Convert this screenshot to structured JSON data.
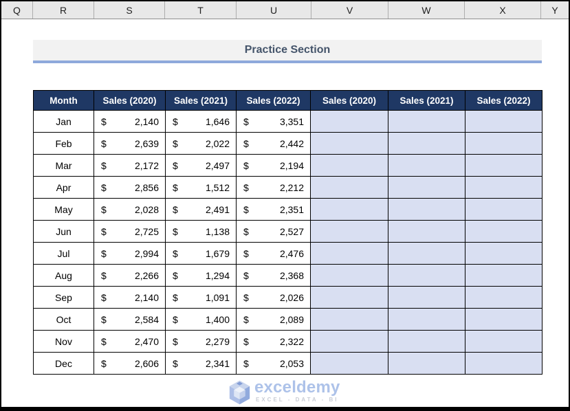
{
  "spreadsheet": {
    "column_letters": [
      "Q",
      "R",
      "S",
      "T",
      "U",
      "V",
      "W",
      "X",
      "Y"
    ]
  },
  "title": {
    "text": "Practice Section"
  },
  "table": {
    "headers": [
      "Month",
      "Sales (2020)",
      "Sales (2021)",
      "Sales (2022)",
      "Sales (2020)",
      "Sales (2021)",
      "Sales (2022)"
    ],
    "currency_symbol": "$",
    "empty_cells_per_row": 3,
    "rows": [
      {
        "month": "Jan",
        "values": [
          "2,140",
          "1,646",
          "3,351"
        ]
      },
      {
        "month": "Feb",
        "values": [
          "2,639",
          "2,022",
          "2,442"
        ]
      },
      {
        "month": "Mar",
        "values": [
          "2,172",
          "2,497",
          "2,194"
        ]
      },
      {
        "month": "Apr",
        "values": [
          "2,856",
          "1,512",
          "2,212"
        ]
      },
      {
        "month": "May",
        "values": [
          "2,028",
          "2,491",
          "2,351"
        ]
      },
      {
        "month": "Jun",
        "values": [
          "2,725",
          "1,138",
          "2,527"
        ]
      },
      {
        "month": "Jul",
        "values": [
          "2,994",
          "1,679",
          "2,476"
        ]
      },
      {
        "month": "Aug",
        "values": [
          "2,266",
          "1,294",
          "2,368"
        ]
      },
      {
        "month": "Sep",
        "values": [
          "2,140",
          "1,091",
          "2,026"
        ]
      },
      {
        "month": "Oct",
        "values": [
          "2,584",
          "1,400",
          "2,089"
        ]
      },
      {
        "month": "Nov",
        "values": [
          "2,470",
          "2,279",
          "2,322"
        ]
      },
      {
        "month": "Dec",
        "values": [
          "2,606",
          "2,341",
          "2,053"
        ]
      }
    ]
  },
  "watermark": {
    "brand": "exceldemy",
    "tagline": "EXCEL - DATA - BI"
  },
  "colors": {
    "header_bg": "#1F3864",
    "header_text": "#FFFFFF",
    "empty_cell_bg": "#D9DFF2",
    "title_text": "#44546A",
    "title_bg": "#F2F2F2",
    "title_underline": "#8EA9DB",
    "watermark_blue": "#A9BFE8",
    "column_strip_bg": "#E8E8E8"
  }
}
